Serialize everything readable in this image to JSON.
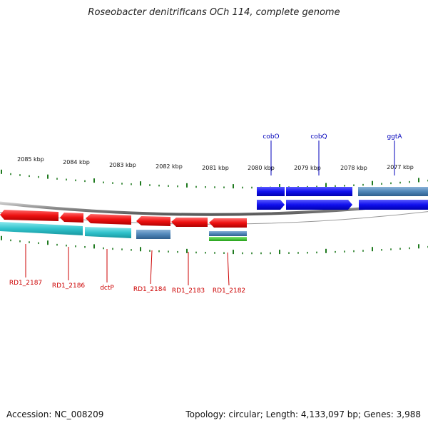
{
  "title": "Roseobacter denitrificans OCh 114, complete genome",
  "footer": {
    "accession": "Accession: NC_008209",
    "topology": "Topology: circular; Length: 4,133,097 bp; Genes: 3,988"
  },
  "colors": {
    "background": "#ffffff",
    "forward_cds": "#1010ee",
    "reverse_cds": "#ee1111",
    "gene_track": "#4f86b8",
    "cyan_track": "#31c3cc",
    "green_track": "#2dbb1f",
    "backbone": "#8a8a8a",
    "tick": "#1f7a1f",
    "reverse_label": "#cc0000",
    "forward_label": "#0000bb"
  },
  "ruler": {
    "unit": "kbp",
    "labels": [
      "2085 kbp",
      "2084 kbp",
      "2083 kbp",
      "2082 kbp",
      "2081 kbp",
      "2080 kbp",
      "2079 kbp",
      "2078 kbp",
      "2077 kbp"
    ]
  },
  "genes": {
    "forward": [
      {
        "name": "cobO",
        "label": "cobO",
        "strand": "+"
      },
      {
        "name": "cobQ",
        "label": "cobQ",
        "strand": "+"
      },
      {
        "name": "ggtA",
        "label": "ggtA",
        "strand": "+"
      }
    ],
    "reverse": [
      {
        "name": "RD1_2187",
        "label": "RD1_2187",
        "strand": "-"
      },
      {
        "name": "RD1_2186",
        "label": "RD1_2186",
        "strand": "-"
      },
      {
        "name": "dctP",
        "label": "dctP",
        "strand": "-"
      },
      {
        "name": "RD1_2184",
        "label": "RD1_2184",
        "strand": "-"
      },
      {
        "name": "RD1_2183",
        "label": "RD1_2183",
        "strand": "-"
      },
      {
        "name": "RD1_2182",
        "label": "RD1_2182",
        "strand": "-"
      }
    ]
  }
}
